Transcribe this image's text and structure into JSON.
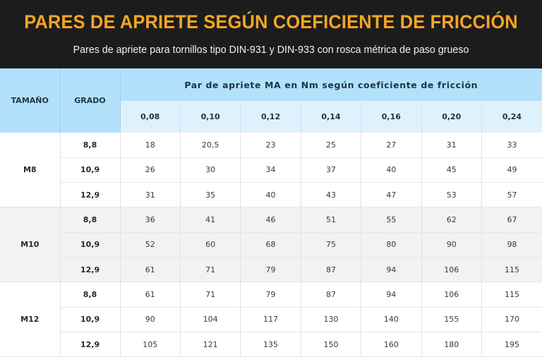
{
  "banner": {
    "title": "PARES DE APRIETE SEGÚN COEFICIENTE DE FRICCIÓN",
    "subtitle": "Pares de apriete para tornillos tipo DIN-931 y DIN-933 con rosca métrica de paso grueso",
    "title_color": "#f5a623",
    "background": "#1c1c1c"
  },
  "table": {
    "headers": {
      "size": "TAMAÑO",
      "grade": "GRADO",
      "group": "Par de apriete MA en Nm según coeficiente de fricción"
    },
    "coefficients": [
      "0,08",
      "0,10",
      "0,12",
      "0,14",
      "0,16",
      "0,20",
      "0,24"
    ],
    "groups": [
      {
        "size": "M8",
        "rows": [
          {
            "grade": "8,8",
            "values": [
              "18",
              "20,5",
              "23",
              "25",
              "27",
              "31",
              "33"
            ]
          },
          {
            "grade": "10,9",
            "values": [
              "26",
              "30",
              "34",
              "37",
              "40",
              "45",
              "49"
            ]
          },
          {
            "grade": "12,9",
            "values": [
              "31",
              "35",
              "40",
              "43",
              "47",
              "53",
              "57"
            ]
          }
        ]
      },
      {
        "size": "M10",
        "rows": [
          {
            "grade": "8,8",
            "values": [
              "36",
              "41",
              "46",
              "51",
              "55",
              "62",
              "67"
            ]
          },
          {
            "grade": "10,9",
            "values": [
              "52",
              "60",
              "68",
              "75",
              "80",
              "90",
              "98"
            ]
          },
          {
            "grade": "12,9",
            "values": [
              "61",
              "71",
              "79",
              "87",
              "94",
              "106",
              "115"
            ]
          }
        ]
      },
      {
        "size": "M12",
        "rows": [
          {
            "grade": "8,8",
            "values": [
              "61",
              "71",
              "79",
              "87",
              "94",
              "106",
              "115"
            ]
          },
          {
            "grade": "10,9",
            "values": [
              "90",
              "104",
              "117",
              "130",
              "140",
              "155",
              "170"
            ]
          },
          {
            "grade": "12,9",
            "values": [
              "105",
              "121",
              "135",
              "150",
              "160",
              "180",
              "195"
            ]
          }
        ]
      }
    ],
    "colors": {
      "header": "#b3e0fb",
      "subheader": "#def2fd",
      "alt_group": "#f2f2f2"
    }
  }
}
